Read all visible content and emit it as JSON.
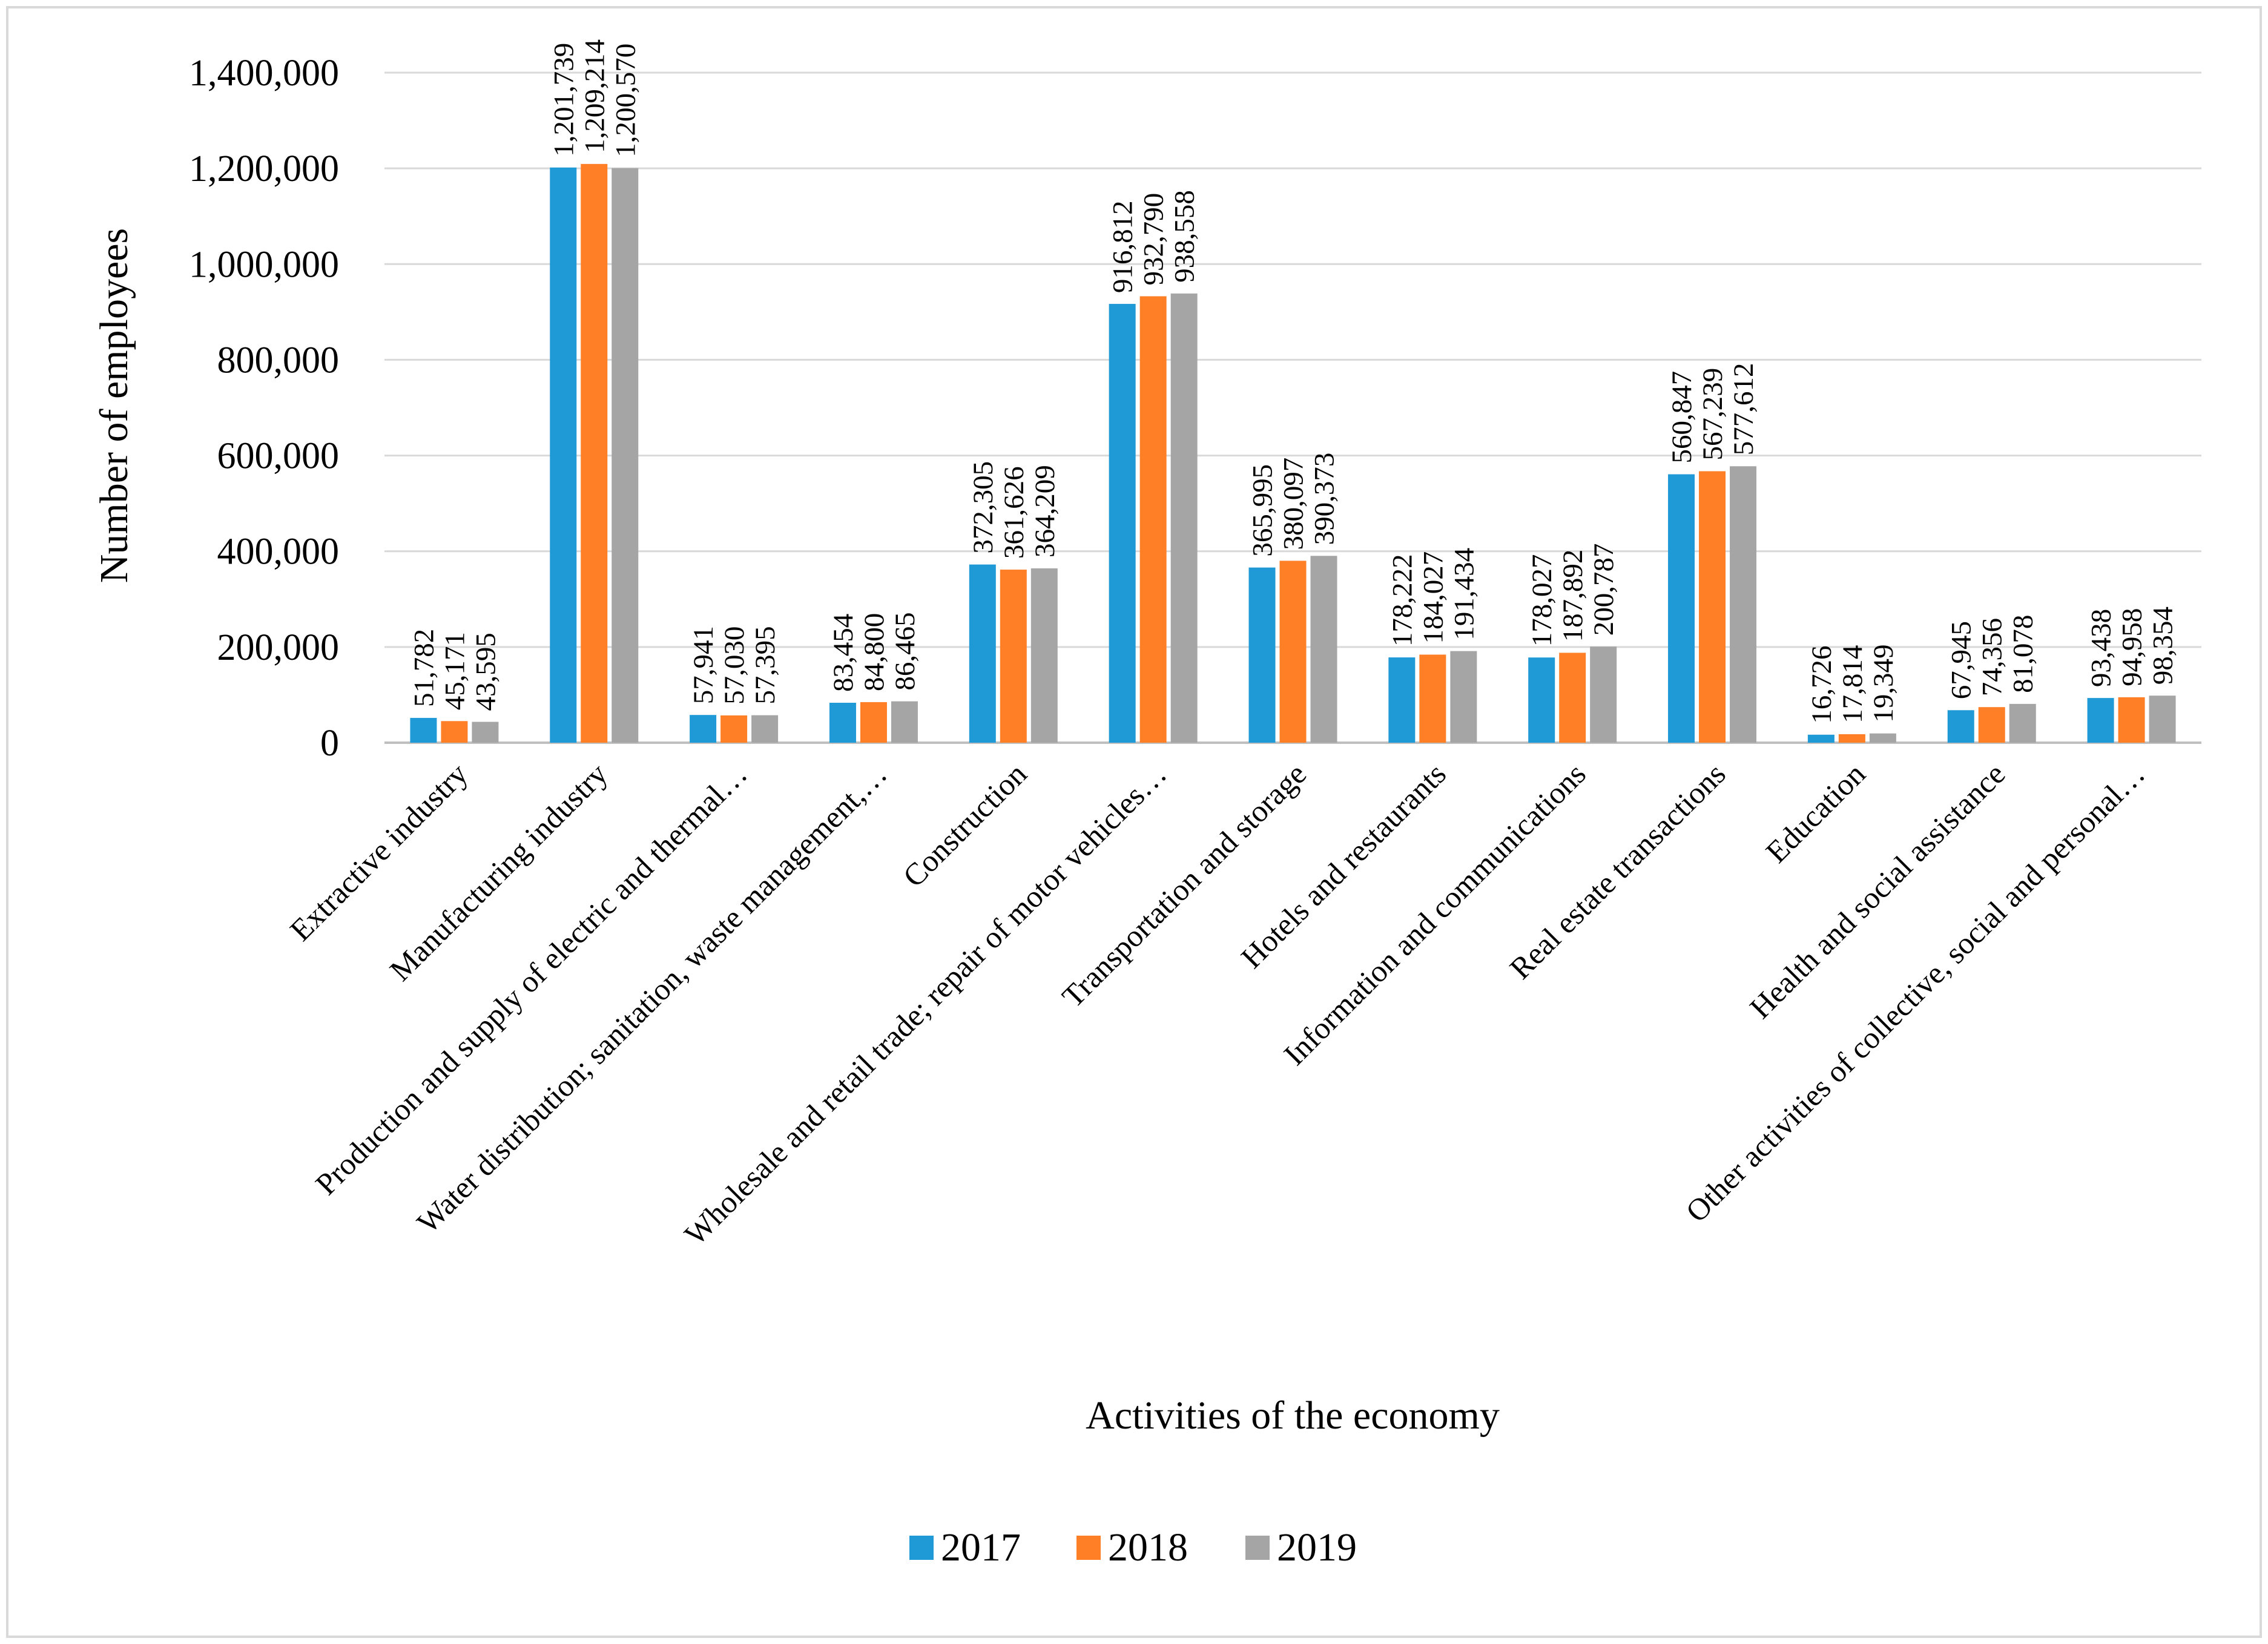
{
  "chart_data": {
    "type": "bar",
    "title": "",
    "xlabel": "Activities of the economy",
    "ylabel": "Number of employees",
    "ylim": [
      0,
      1400000
    ],
    "yticks": [
      0,
      200000,
      400000,
      600000,
      800000,
      1000000,
      1200000,
      1400000
    ],
    "ytick_labels": [
      "0",
      "200,000",
      "400,000",
      "600,000",
      "800,000",
      "1,000,000",
      "1,200,000",
      "1,400,000"
    ],
    "grid": true,
    "legend_position": "bottom",
    "categories": [
      "Extractive industry",
      "Manufacturing industry",
      "Production and supply of electric and thermal…",
      "Water distribution; sanitation, waste management,…",
      "Construction",
      "Wholesale and retail trade; repair of motor vehicles…",
      "Transportation and storage",
      "Hotels and restaurants",
      "Information and communications",
      "Real estate transactions",
      "Education",
      "Health and social assistance",
      "Other activities of collective, social and personal…"
    ],
    "series": [
      {
        "name": "2017",
        "color": "#1f9ad6",
        "values": [
          51782,
          1201739,
          57941,
          83454,
          372305,
          916812,
          365995,
          178222,
          178027,
          560847,
          16726,
          67945,
          93438
        ],
        "labels": [
          "51,782",
          "1,201,739",
          "57,941",
          "83,454",
          "372,305",
          "916,812",
          "365,995",
          "178,222",
          "178,027",
          "560,847",
          "16,726",
          "67,945",
          "93,438"
        ]
      },
      {
        "name": "2018",
        "color": "#ff7f27",
        "values": [
          45171,
          1209214,
          57030,
          84800,
          361626,
          932790,
          380097,
          184027,
          187892,
          567239,
          17814,
          74356,
          94958
        ],
        "labels": [
          "45,171",
          "1,209,214",
          "57,030",
          "84,800",
          "361,626",
          "932,790",
          "380,097",
          "184,027",
          "187,892",
          "567,239",
          "17,814",
          "74,356",
          "94,958"
        ]
      },
      {
        "name": "2019",
        "color": "#a5a5a5",
        "values": [
          43595,
          1200570,
          57395,
          86465,
          364209,
          938558,
          390373,
          191434,
          200787,
          577612,
          19349,
          81078,
          98354
        ],
        "labels": [
          "43,595",
          "1,200,570",
          "57,395",
          "86,465",
          "364,209",
          "938,558",
          "390,373",
          "191,434",
          "200,787",
          "577,612",
          "19,349",
          "81,078",
          "98,354"
        ]
      }
    ]
  }
}
